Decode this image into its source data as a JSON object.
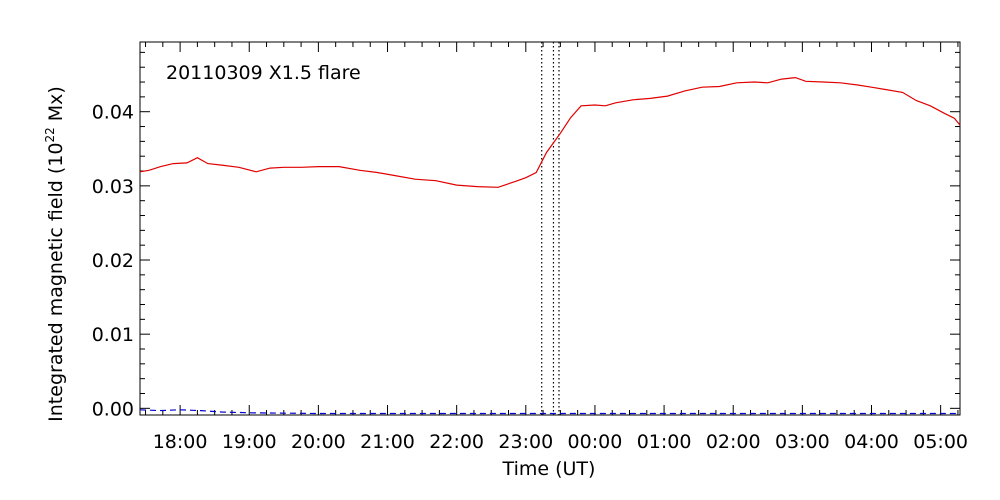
{
  "chart_data": {
    "type": "line",
    "title": "",
    "annotation": "20110309  X1.5  flare",
    "xlabel": "Time  (UT)",
    "ylabel_parts": {
      "prefix": "Integrated  magnetic  field  (10",
      "sup": "22",
      "suffix": " Mx)"
    },
    "x_unit": "hours from 2011-03-09 17:00 UT",
    "xlim": [
      0.42,
      12.28
    ],
    "ylim": [
      -0.0009,
      0.0494
    ],
    "x_ticks": [
      {
        "value": 1,
        "label": "18:00"
      },
      {
        "value": 2,
        "label": "19:00"
      },
      {
        "value": 3,
        "label": "20:00"
      },
      {
        "value": 4,
        "label": "21:00"
      },
      {
        "value": 5,
        "label": "22:00"
      },
      {
        "value": 6,
        "label": "23:00"
      },
      {
        "value": 7,
        "label": "00:00"
      },
      {
        "value": 8,
        "label": "01:00"
      },
      {
        "value": 9,
        "label": "02:00"
      },
      {
        "value": 10,
        "label": "03:00"
      },
      {
        "value": 11,
        "label": "04:00"
      },
      {
        "value": 12,
        "label": "05:00"
      }
    ],
    "y_ticks": [
      {
        "value": 0.0,
        "label": "0.00"
      },
      {
        "value": 0.01,
        "label": "0.01"
      },
      {
        "value": 0.02,
        "label": "0.02"
      },
      {
        "value": 0.03,
        "label": "0.03"
      },
      {
        "value": 0.04,
        "label": "0.04"
      }
    ],
    "vlines": [
      6.23,
      6.4,
      6.48
    ],
    "series": [
      {
        "color": "#e00000",
        "style": "solid",
        "x": [
          0.42,
          0.55,
          0.72,
          0.9,
          1.1,
          1.25,
          1.4,
          1.6,
          1.85,
          2.1,
          2.3,
          2.5,
          2.75,
          3.0,
          3.3,
          3.6,
          3.85,
          4.1,
          4.4,
          4.7,
          5.0,
          5.3,
          5.6,
          5.85,
          6.0,
          6.15,
          6.3,
          6.5,
          6.65,
          6.8,
          7.0,
          7.15,
          7.3,
          7.55,
          7.8,
          8.05,
          8.3,
          8.55,
          8.8,
          9.05,
          9.3,
          9.5,
          9.7,
          9.9,
          10.05,
          10.3,
          10.55,
          10.8,
          11.0,
          11.2,
          11.45,
          11.65,
          11.85,
          12.05,
          12.2,
          12.28
        ],
        "y": [
          0.0319,
          0.0321,
          0.0326,
          0.033,
          0.0331,
          0.0338,
          0.033,
          0.0328,
          0.0325,
          0.0319,
          0.0324,
          0.0325,
          0.0325,
          0.0326,
          0.0326,
          0.0321,
          0.0318,
          0.0314,
          0.0309,
          0.0307,
          0.0301,
          0.0299,
          0.0298,
          0.0306,
          0.0311,
          0.0318,
          0.0345,
          0.0371,
          0.0392,
          0.0408,
          0.0409,
          0.0408,
          0.0412,
          0.0416,
          0.0418,
          0.0421,
          0.0428,
          0.0433,
          0.0434,
          0.0439,
          0.044,
          0.0439,
          0.0444,
          0.0446,
          0.0441,
          0.044,
          0.0439,
          0.0436,
          0.0433,
          0.043,
          0.0426,
          0.0415,
          0.0408,
          0.0398,
          0.0391,
          0.0382
        ]
      },
      {
        "color": "#0000cc",
        "style": "dashed",
        "x": [
          0.42,
          0.7,
          1.0,
          1.3,
          1.6,
          2.0,
          3.0,
          4.0,
          5.0,
          6.0,
          7.0,
          8.0,
          9.0,
          10.0,
          11.0,
          12.28
        ],
        "y": [
          -0.0002,
          -0.0003,
          -0.0002,
          -0.0003,
          -0.0005,
          -0.0006,
          -0.0007,
          -0.0007,
          -0.0007,
          -0.0007,
          -0.0007,
          -0.0007,
          -0.0007,
          -0.0007,
          -0.0007,
          -0.0007
        ]
      }
    ],
    "grid": false,
    "legend": "none"
  }
}
